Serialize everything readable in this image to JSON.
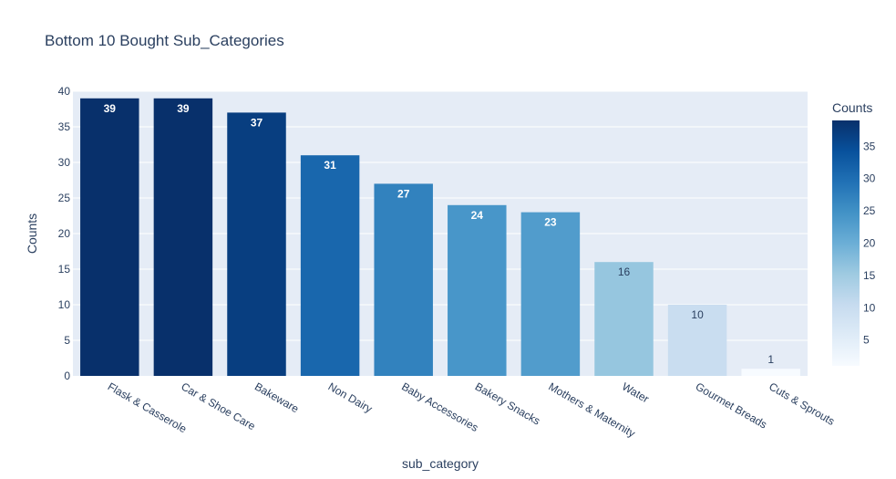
{
  "chart_data": {
    "type": "bar",
    "title": "Bottom 10 Bought Sub_Categories",
    "xlabel": "sub_category",
    "ylabel": "Counts",
    "categories": [
      "Flask & Casserole",
      "Car & Shoe Care",
      "Bakeware",
      "Non Dairy",
      "Baby Accessories",
      "Bakery Snacks",
      "Mothers & Maternity",
      "Water",
      "Gourmet Breads",
      "Cuts & Sprouts"
    ],
    "values": [
      39,
      39,
      37,
      31,
      27,
      24,
      23,
      16,
      10,
      1
    ],
    "ylim": [
      0,
      40
    ],
    "yticks": [
      0,
      5,
      10,
      15,
      20,
      25,
      30,
      35,
      40
    ],
    "grid": true,
    "colorscale": "Blues",
    "colorbar": {
      "title": "Counts",
      "range": [
        1,
        39
      ],
      "ticks": [
        5,
        10,
        15,
        20,
        25,
        30,
        35
      ]
    },
    "plot_background": "#e5ecf6"
  }
}
